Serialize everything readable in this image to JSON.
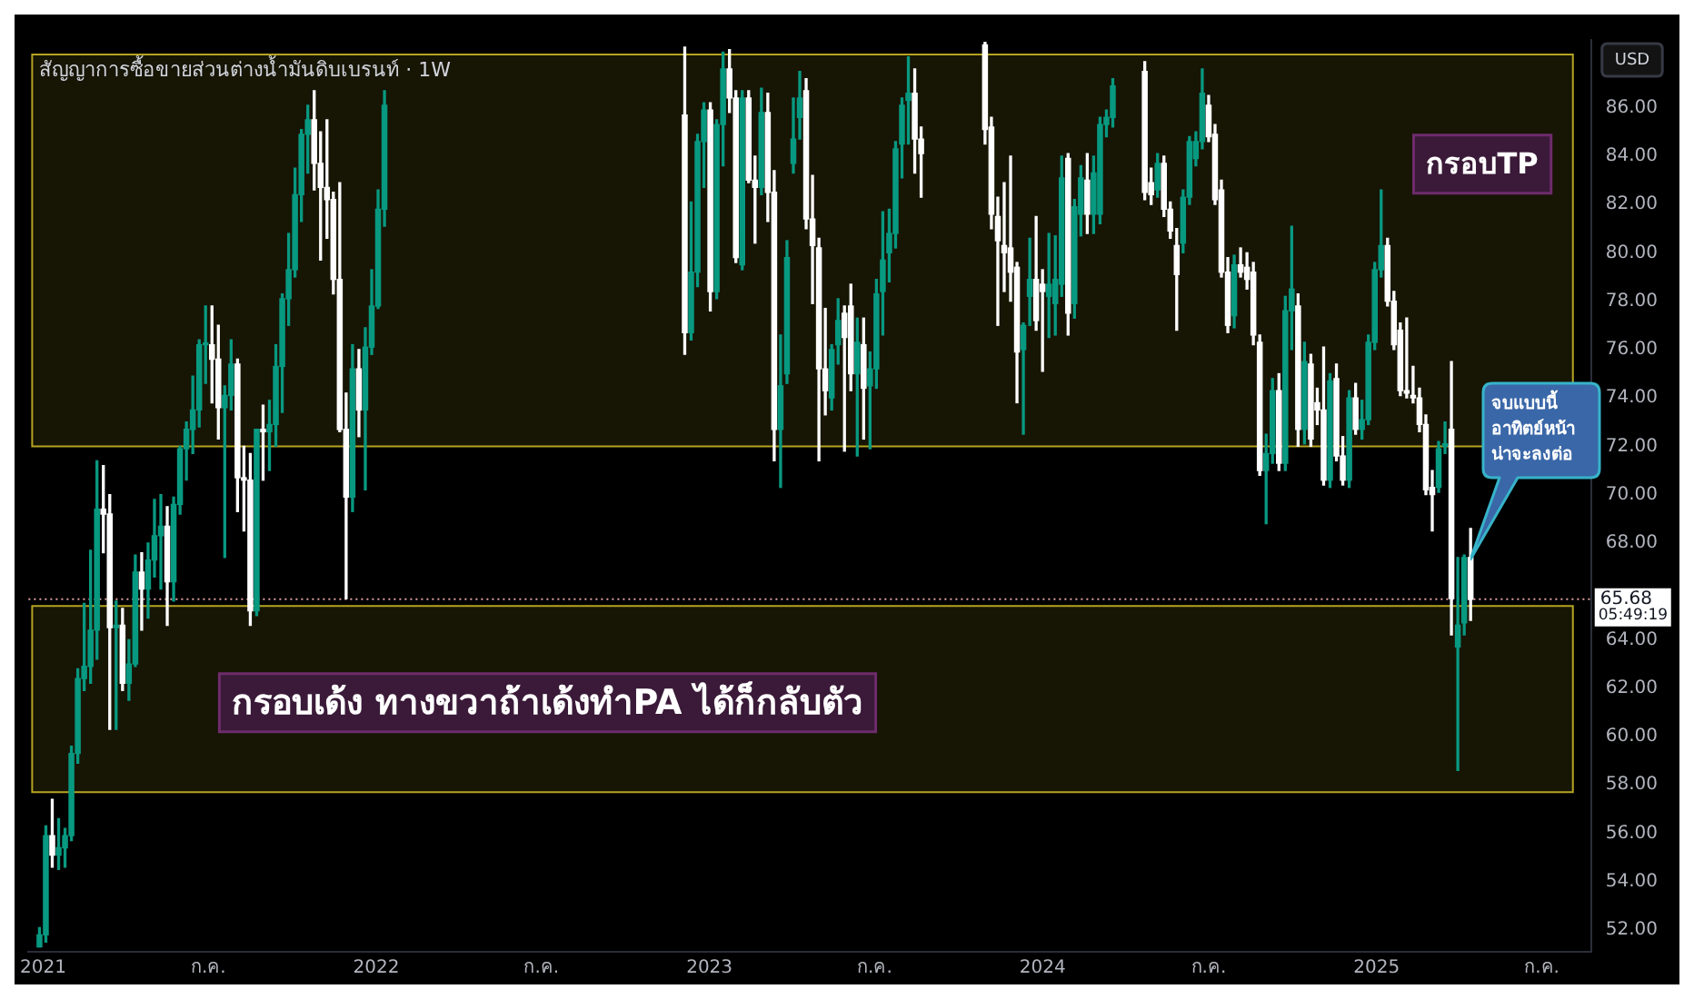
{
  "chart_data": {
    "type": "candlestick",
    "title": "สัญญาการซื้อขายส่วนต่างน้ำมันดิบเบรนท์ · 1W",
    "ylabel": "USD",
    "colors": [
      "#089981",
      "#089981",
      "#ffffff",
      "#089981",
      "#089981",
      "#089981",
      "#089981",
      "#089981",
      "#089981",
      "#089981",
      "#ffffff",
      "#ffffff",
      "#089981",
      "#ffffff",
      "#089981",
      "#089981",
      "#ffffff",
      "#089981",
      "#089981",
      "#089981",
      "#ffffff",
      "#089981",
      "#089981",
      "#089981",
      "#089981",
      "#089981",
      "#089981",
      "#ffffff",
      "#ffffff",
      "#089981",
      "#089981",
      "#ffffff",
      "#ffffff",
      "#ffffff",
      "#089981",
      "#ffffff",
      "#089981",
      "#089981",
      "#089981",
      "#089981",
      "#089981",
      "#089981",
      "#089981",
      "#ffffff",
      "#ffffff",
      "#ffffff",
      "#ffffff",
      "#ffffff",
      "#ffffff",
      "#089981",
      "#ffffff",
      "#089981",
      "#089981",
      "#089981",
      "#089981",
      "#ffffff",
      "#089981",
      "#089981",
      "#089981",
      "#ffffff",
      "#089981",
      "#089981",
      "#ffffff",
      "#ffffff",
      "#089981",
      "#ffffff",
      "#ffffff",
      "#089981",
      "#ffffff",
      "#ffffff",
      "#089981",
      "#089981",
      "#089981",
      "#089981",
      "#ffffff",
      "#ffffff",
      "#ffffff",
      "#ffffff",
      "#089981",
      "#089981",
      "#ffffff",
      "#ffffff",
      "#089981",
      "#ffffff",
      "#089981",
      "#089981",
      "#089981",
      "#089981",
      "#089981",
      "#089981",
      "#089981",
      "#ffffff",
      "#ffffff",
      "#ffffff",
      "#ffffff",
      "#ffffff",
      "#ffffff",
      "#ffffff",
      "#ffffff",
      "#089981",
      "#089981",
      "#ffffff",
      "#ffffff",
      "#089981",
      "#089981",
      "#089981",
      "#ffffff",
      "#089981",
      "#089981",
      "#ffffff",
      "#089981",
      "#089981",
      "#089981",
      "#089981",
      "#ffffff",
      "#ffffff",
      "#089981",
      "#ffffff",
      "#ffffff",
      "#ffffff",
      "#089981",
      "#089981",
      "#089981",
      "#089981",
      "#ffffff",
      "#ffffff",
      "#ffffff",
      "#ffffff",
      "#089981",
      "#ffffff",
      "#ffffff",
      "#ffffff",
      "#ffffff",
      "#089981",
      "#089981",
      "#ffffff",
      "#089981",
      "#089981",
      "#ffffff",
      "#089981",
      "#ffffff",
      "#ffffff",
      "#ffffff",
      "#089981",
      "#ffffff",
      "#ffffff",
      "#089981",
      "#ffffff",
      "#089981",
      "#089981",
      "#089981",
      "#089981",
      "#ffffff",
      "#ffffff",
      "#ffffff",
      "#ffffff",
      "#ffffff",
      "#ffffff",
      "#ffffff",
      "#ffffff",
      "#089981",
      "#089981",
      "#ffffff",
      "#089981",
      "#089981",
      "#ffffff"
    ],
    "x": [
      "2020-12-28",
      "2021-01-04",
      "2021-01-11",
      "2021-01-18",
      "2021-01-25",
      "2021-02-01",
      "2021-02-08",
      "2021-02-15",
      "2021-02-22",
      "2021-03-01",
      "2021-03-08",
      "2021-03-15",
      "2021-03-22",
      "2021-03-29",
      "2021-04-05",
      "2021-04-12",
      "2021-04-19",
      "2021-04-26",
      "2021-05-03",
      "2021-05-10",
      "2021-05-17",
      "2021-05-24",
      "2021-05-31",
      "2021-06-07",
      "2021-06-14",
      "2021-06-21",
      "2021-06-28",
      "2021-07-05",
      "2021-07-12",
      "2021-07-19",
      "2021-07-26",
      "2021-08-02",
      "2021-08-09",
      "2021-08-16",
      "2021-08-23",
      "2021-08-30",
      "2021-09-06",
      "2021-09-13",
      "2021-09-20",
      "2021-09-27",
      "2021-10-04",
      "2021-10-11",
      "2021-10-18",
      "2021-10-25",
      "2021-11-01",
      "2021-11-08",
      "2021-11-15",
      "2021-11-22",
      "2021-11-29",
      "2021-12-06",
      "2021-12-13",
      "2021-12-20",
      "2021-12-27",
      "2022-01-03",
      "2022-01-10",
      "2022-12-05",
      "2022-12-12",
      "2022-12-19",
      "2022-12-26",
      "2023-01-02",
      "2023-01-09",
      "2023-01-16",
      "2023-01-23",
      "2023-01-30",
      "2023-02-06",
      "2023-02-13",
      "2023-02-20",
      "2023-02-27",
      "2023-03-06",
      "2023-03-13",
      "2023-03-20",
      "2023-03-27",
      "2023-04-03",
      "2023-04-10",
      "2023-04-17",
      "2023-04-24",
      "2023-05-01",
      "2023-05-08",
      "2023-05-15",
      "2023-05-22",
      "2023-05-29",
      "2023-06-05",
      "2023-06-12",
      "2023-06-19",
      "2023-06-26",
      "2023-07-03",
      "2023-07-10",
      "2023-07-17",
      "2023-07-24",
      "2023-07-31",
      "2023-08-07",
      "2023-08-14",
      "2023-08-21",
      "2023-10-30",
      "2023-11-06",
      "2023-11-13",
      "2023-11-20",
      "2023-11-27",
      "2023-12-04",
      "2023-12-11",
      "2023-12-18",
      "2023-12-25",
      "2024-01-01",
      "2024-01-08",
      "2024-01-15",
      "2024-01-22",
      "2024-01-29",
      "2024-02-05",
      "2024-02-12",
      "2024-02-19",
      "2024-02-26",
      "2024-03-04",
      "2024-03-11",
      "2024-03-18",
      "2024-04-22",
      "2024-04-29",
      "2024-05-06",
      "2024-05-13",
      "2024-05-20",
      "2024-05-27",
      "2024-06-03",
      "2024-06-10",
      "2024-06-17",
      "2024-06-24",
      "2024-07-01",
      "2024-07-08",
      "2024-07-15",
      "2024-07-22",
      "2024-07-29",
      "2024-08-05",
      "2024-08-12",
      "2024-08-19",
      "2024-08-26",
      "2024-09-02",
      "2024-09-09",
      "2024-09-16",
      "2024-09-23",
      "2024-09-30",
      "2024-10-07",
      "2024-10-14",
      "2024-10-21",
      "2024-10-28",
      "2024-11-04",
      "2024-11-11",
      "2024-11-18",
      "2024-11-25",
      "2024-12-02",
      "2024-12-09",
      "2024-12-16",
      "2024-12-23",
      "2024-12-30",
      "2025-01-06",
      "2025-01-13",
      "2025-01-20",
      "2025-01-27",
      "2025-02-03",
      "2025-02-10",
      "2025-02-17",
      "2025-02-24",
      "2025-03-03",
      "2025-03-10",
      "2025-03-17",
      "2025-03-24",
      "2025-03-31",
      "2025-04-07",
      "2025-04-14"
    ],
    "ohlc": [
      [
        51.3,
        52.1,
        51.3,
        51.8
      ],
      [
        51.8,
        56.3,
        51.5,
        55.9
      ],
      [
        55.9,
        57.4,
        54.6,
        55.1
      ],
      [
        55.1,
        56.6,
        54.5,
        55.4
      ],
      [
        55.4,
        56.2,
        54.6,
        55.9
      ],
      [
        55.9,
        59.6,
        55.7,
        59.3
      ],
      [
        59.3,
        62.8,
        58.9,
        62.4
      ],
      [
        62.4,
        65.5,
        61.9,
        62.9
      ],
      [
        62.9,
        67.7,
        62.2,
        64.4
      ],
      [
        64.4,
        71.4,
        63.2,
        69.4
      ],
      [
        69.4,
        71.2,
        67.6,
        69.2
      ],
      [
        69.2,
        70.0,
        60.3,
        64.5
      ],
      [
        64.5,
        65.6,
        60.3,
        64.6
      ],
      [
        64.6,
        65.3,
        61.9,
        62.2
      ],
      [
        62.2,
        64.0,
        61.5,
        63.0
      ],
      [
        63.0,
        67.5,
        62.9,
        66.8
      ],
      [
        66.8,
        67.6,
        64.4,
        66.1
      ],
      [
        66.1,
        68.0,
        64.9,
        67.3
      ],
      [
        67.3,
        69.8,
        66.6,
        68.3
      ],
      [
        68.3,
        70.0,
        66.1,
        68.7
      ],
      [
        68.7,
        69.5,
        64.6,
        66.4
      ],
      [
        66.4,
        69.9,
        65.6,
        69.6
      ],
      [
        69.6,
        72.0,
        69.2,
        71.9
      ],
      [
        71.9,
        73.0,
        70.6,
        72.7
      ],
      [
        72.7,
        74.9,
        71.7,
        73.5
      ],
      [
        73.5,
        76.4,
        72.8,
        76.2
      ],
      [
        76.2,
        77.8,
        74.6,
        76.2
      ],
      [
        76.2,
        77.8,
        73.8,
        75.6
      ],
      [
        75.6,
        77.0,
        72.3,
        73.6
      ],
      [
        73.6,
        74.5,
        67.4,
        74.1
      ],
      [
        74.1,
        76.4,
        73.5,
        75.4
      ],
      [
        75.4,
        75.6,
        69.3,
        70.7
      ],
      [
        70.7,
        72.0,
        68.5,
        70.6
      ],
      [
        70.6,
        71.7,
        64.6,
        65.2
      ],
      [
        65.2,
        72.7,
        65.0,
        72.7
      ],
      [
        72.7,
        73.7,
        70.6,
        72.6
      ],
      [
        72.6,
        73.9,
        71.0,
        72.9
      ],
      [
        72.9,
        76.2,
        72.0,
        75.3
      ],
      [
        75.3,
        78.3,
        73.4,
        78.1
      ],
      [
        78.1,
        80.8,
        77.0,
        79.3
      ],
      [
        79.3,
        83.5,
        79.0,
        82.4
      ],
      [
        82.4,
        85.1,
        81.3,
        84.9
      ],
      [
        84.9,
        86.1,
        83.3,
        85.5
      ],
      [
        85.5,
        86.7,
        82.6,
        83.7
      ],
      [
        83.7,
        85.0,
        79.7,
        82.7
      ],
      [
        82.7,
        85.5,
        80.6,
        82.2
      ],
      [
        82.2,
        82.5,
        78.3,
        78.9
      ],
      [
        78.9,
        82.9,
        72.6,
        72.7
      ],
      [
        72.7,
        74.2,
        65.7,
        69.9
      ],
      [
        69.9,
        76.2,
        69.3,
        75.2
      ],
      [
        75.2,
        76.0,
        72.4,
        73.5
      ],
      [
        73.5,
        76.9,
        70.2,
        76.1
      ],
      [
        76.1,
        79.3,
        75.8,
        77.8
      ],
      [
        77.8,
        82.6,
        77.7,
        81.8
      ],
      [
        81.8,
        86.7,
        81.1,
        86.1
      ],
      [
        85.7,
        88.5,
        75.8,
        76.7
      ],
      [
        76.7,
        82.1,
        76.4,
        79.2
      ],
      [
        79.2,
        84.9,
        78.6,
        84.6
      ],
      [
        84.6,
        86.2,
        82.7,
        85.9
      ],
      [
        85.9,
        86.2,
        77.6,
        78.4
      ],
      [
        78.4,
        85.5,
        78.1,
        85.3
      ],
      [
        85.3,
        88.3,
        83.6,
        87.6
      ],
      [
        87.6,
        88.4,
        85.8,
        86.4
      ],
      [
        86.4,
        86.7,
        79.6,
        79.8
      ],
      [
        79.5,
        86.7,
        79.3,
        86.4
      ],
      [
        86.4,
        86.7,
        82.9,
        83.0
      ],
      [
        83.0,
        84.0,
        80.4,
        82.7
      ],
      [
        82.7,
        86.8,
        82.4,
        85.8
      ],
      [
        85.8,
        86.6,
        81.3,
        82.5
      ],
      [
        82.5,
        83.4,
        71.4,
        72.7
      ],
      [
        72.7,
        76.6,
        70.3,
        74.5
      ],
      [
        75.0,
        80.5,
        74.6,
        79.8
      ],
      [
        83.7,
        86.4,
        83.3,
        84.7
      ],
      [
        85.6,
        87.5,
        84.7,
        86.4
      ],
      [
        86.7,
        87.2,
        81.0,
        81.4
      ],
      [
        81.4,
        83.2,
        77.9,
        80.3
      ],
      [
        80.2,
        80.6,
        71.4,
        75.2
      ],
      [
        75.2,
        77.7,
        73.3,
        74.3
      ],
      [
        74.0,
        76.2,
        73.5,
        76.0
      ],
      [
        76.2,
        78.1,
        75.4,
        77.2
      ],
      [
        77.5,
        77.8,
        71.8,
        76.5
      ],
      [
        77.8,
        78.7,
        74.3,
        75.0
      ],
      [
        75.0,
        77.3,
        71.6,
        76.3
      ],
      [
        76.2,
        77.3,
        72.3,
        74.4
      ],
      [
        74.5,
        75.9,
        71.9,
        75.2
      ],
      [
        75.2,
        78.9,
        74.4,
        78.3
      ],
      [
        78.4,
        81.7,
        76.6,
        79.7
      ],
      [
        80.0,
        81.8,
        78.8,
        80.8
      ],
      [
        80.8,
        84.6,
        80.2,
        84.3
      ],
      [
        84.5,
        86.4,
        83.1,
        86.1
      ],
      [
        86.3,
        88.1,
        84.5,
        86.6
      ],
      [
        86.6,
        87.6,
        83.3,
        84.7
      ],
      [
        84.7,
        85.2,
        82.3,
        84.1
      ],
      [
        88.6,
        88.7,
        84.5,
        85.1
      ],
      [
        85.2,
        85.6,
        81.0,
        81.6
      ],
      [
        81.5,
        82.3,
        77.0,
        80.5
      ],
      [
        80.3,
        82.9,
        78.4,
        80.0
      ],
      [
        80.2,
        84.0,
        78.0,
        79.2
      ],
      [
        79.4,
        79.6,
        73.8,
        75.9
      ],
      [
        76.0,
        77.1,
        72.5,
        77.0
      ],
      [
        78.2,
        80.6,
        77.0,
        78.9
      ],
      [
        78.9,
        81.5,
        76.8,
        77.2
      ],
      [
        78.7,
        79.3,
        75.1,
        78.4
      ],
      [
        78.2,
        80.8,
        76.5,
        78.7
      ],
      [
        77.9,
        80.7,
        76.6,
        78.9
      ],
      [
        78.7,
        84.0,
        78.2,
        83.1
      ],
      [
        83.9,
        84.1,
        76.6,
        77.5
      ],
      [
        77.9,
        82.2,
        77.3,
        81.9
      ],
      [
        81.6,
        83.6,
        80.7,
        83.1
      ],
      [
        83.0,
        84.1,
        80.8,
        81.6
      ],
      [
        81.6,
        84.0,
        80.8,
        83.3
      ],
      [
        81.6,
        85.6,
        81.2,
        85.3
      ],
      [
        85.3,
        85.9,
        84.8,
        85.6
      ],
      [
        85.6,
        87.2,
        85.2,
        86.9
      ],
      [
        87.5,
        87.9,
        82.2,
        82.5
      ],
      [
        82.9,
        83.5,
        82.0,
        82.4
      ],
      [
        82.6,
        84.1,
        82.3,
        83.7
      ],
      [
        83.7,
        84.0,
        81.5,
        81.8
      ],
      [
        81.8,
        82.1,
        80.6,
        80.9
      ],
      [
        80.3,
        81.0,
        76.8,
        79.1
      ],
      [
        80.4,
        82.6,
        80.0,
        82.3
      ],
      [
        82.3,
        84.8,
        82.0,
        84.6
      ],
      [
        83.9,
        85.0,
        83.6,
        84.6
      ],
      [
        84.6,
        87.6,
        84.3,
        86.6
      ],
      [
        86.1,
        86.5,
        84.6,
        84.8
      ],
      [
        84.9,
        85.3,
        82.0,
        82.2
      ],
      [
        82.6,
        83.0,
        79.0,
        79.2
      ],
      [
        79.2,
        79.8,
        76.7,
        77.0
      ],
      [
        77.4,
        79.9,
        76.9,
        79.5
      ],
      [
        79.5,
        80.2,
        79.0,
        79.2
      ],
      [
        79.4,
        80.0,
        78.5,
        78.9
      ],
      [
        79.2,
        79.6,
        76.2,
        76.6
      ],
      [
        76.3,
        76.6,
        70.8,
        71.0
      ],
      [
        71.0,
        72.5,
        68.8,
        71.7
      ],
      [
        71.7,
        74.8,
        71.3,
        74.3
      ],
      [
        74.3,
        75.0,
        71.0,
        71.3
      ],
      [
        71.3,
        78.2,
        71.0,
        77.6
      ],
      [
        77.6,
        81.1,
        76.0,
        78.5
      ],
      [
        77.8,
        78.3,
        72.0,
        72.7
      ],
      [
        72.7,
        76.3,
        72.1,
        75.5
      ],
      [
        75.4,
        75.8,
        72.0,
        72.3
      ],
      [
        73.8,
        74.4,
        72.9,
        73.5
      ],
      [
        73.5,
        76.1,
        70.4,
        70.6
      ],
      [
        70.6,
        75.0,
        70.3,
        74.7
      ],
      [
        74.8,
        75.4,
        71.4,
        71.6
      ],
      [
        71.6,
        72.4,
        70.4,
        70.6
      ],
      [
        70.6,
        74.3,
        70.3,
        74.0
      ],
      [
        74.0,
        74.6,
        72.5,
        72.7
      ],
      [
        72.7,
        73.9,
        72.3,
        73.1
      ],
      [
        73.1,
        76.6,
        72.9,
        76.3
      ],
      [
        76.3,
        79.6,
        76.0,
        79.3
      ],
      [
        79.3,
        82.6,
        79.0,
        80.3
      ],
      [
        80.3,
        80.6,
        77.8,
        78.0
      ],
      [
        78.0,
        78.4,
        76.0,
        76.2
      ],
      [
        76.8,
        77.1,
        74.1,
        74.3
      ],
      [
        74.3,
        77.3,
        74.0,
        74.2
      ],
      [
        74.1,
        75.3,
        73.8,
        74.0
      ],
      [
        74.0,
        74.4,
        72.6,
        72.9
      ],
      [
        72.9,
        73.3,
        70.0,
        70.2
      ],
      [
        70.3,
        71.0,
        68.5,
        70.0
      ],
      [
        70.3,
        72.2,
        70.1,
        71.9
      ],
      [
        72.0,
        73.0,
        71.7,
        72.1
      ],
      [
        72.7,
        75.5,
        64.2,
        65.7
      ],
      [
        63.7,
        67.4,
        58.6,
        64.6
      ],
      [
        64.7,
        67.5,
        64.2,
        67.4
      ],
      [
        67.4,
        68.6,
        64.8,
        65.68
      ]
    ],
    "xlim": [
      "2020-12-16",
      "2025-08-24"
    ],
    "xticks": [
      {
        "value": "2021-01-01",
        "label": "2021"
      },
      {
        "value": "2021-07-01",
        "label": "ก.ค."
      },
      {
        "value": "2022-01-01",
        "label": "2022"
      },
      {
        "value": "2022-07-01",
        "label": "ก.ค."
      },
      {
        "value": "2023-01-01",
        "label": "2023"
      },
      {
        "value": "2023-07-01",
        "label": "ก.ค."
      },
      {
        "value": "2024-01-01",
        "label": "2024"
      },
      {
        "value": "2024-07-01",
        "label": "ก.ค."
      },
      {
        "value": "2025-01-01",
        "label": "2025"
      },
      {
        "value": "2025-07-01",
        "label": "ก.ค."
      }
    ],
    "ylim": [
      51.1,
      88.8
    ],
    "yticks": [
      {
        "value": 52,
        "label": "52.00"
      },
      {
        "value": 54,
        "label": "54.00"
      },
      {
        "value": 56,
        "label": "56.00"
      },
      {
        "value": 58,
        "label": "58.00"
      },
      {
        "value": 60,
        "label": "60.00"
      },
      {
        "value": 62,
        "label": "62.00"
      },
      {
        "value": 64,
        "label": "64.00"
      },
      {
        "value": 68,
        "label": "68.00"
      },
      {
        "value": 70,
        "label": "70.00"
      },
      {
        "value": 72,
        "label": "72.00"
      },
      {
        "value": 74,
        "label": "74.00"
      },
      {
        "value": 76,
        "label": "76.00"
      },
      {
        "value": 78,
        "label": "78.00"
      },
      {
        "value": 80,
        "label": "80.00"
      },
      {
        "value": 82,
        "label": "82.00"
      },
      {
        "value": 84,
        "label": "84.00"
      },
      {
        "value": 86,
        "label": "86.00"
      }
    ],
    "bands": [
      {
        "axis": "y",
        "from": 72.0,
        "to": 88.2,
        "label": "กรอบTP",
        "color": "#b5a422"
      },
      {
        "axis": "y",
        "from": 57.7,
        "to": 65.4,
        "label": "กรอบเด้ง ทางขวาถ้าเด้งทำPA ได้ก็กลับตัว",
        "color": "#b5a422"
      }
    ],
    "ref_lines": [
      {
        "axis": "y",
        "value": 65.68,
        "label": "65.68",
        "color": "#e0a0a0",
        "line_style": "dotted"
      }
    ],
    "annotations": [
      "จบแบบนี้\nอาทิตย์หน้า\nน่าจะลงต่อ",
      "05:49:19"
    ]
  }
}
